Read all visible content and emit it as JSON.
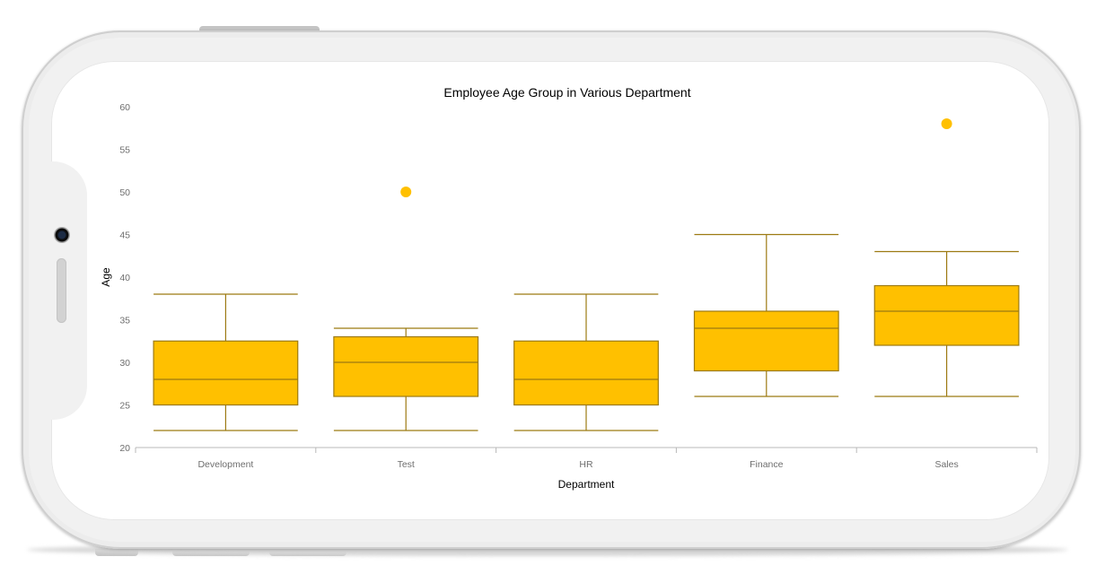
{
  "colors": {
    "box_fill": "#FFC000",
    "box_stroke": "#9C7A12",
    "outlier": "#FFC000",
    "axis": "#b8b8b8"
  },
  "chart_data": {
    "type": "box",
    "title": "Employee Age Group in Various Department",
    "xlabel": "Department",
    "ylabel": "Age",
    "ylim": [
      20,
      60
    ],
    "yticks": [
      20,
      25,
      30,
      35,
      40,
      45,
      50,
      55,
      60
    ],
    "grid": false,
    "categories": [
      "Development",
      "Test",
      "HR",
      "Finance",
      "Sales"
    ],
    "series": [
      {
        "category": "Development",
        "min": 22,
        "q1": 25,
        "median": 28,
        "q3": 32.5,
        "max": 38,
        "outliers": []
      },
      {
        "category": "Test",
        "min": 22,
        "q1": 26,
        "median": 30,
        "q3": 33,
        "max": 34,
        "outliers": [
          50
        ]
      },
      {
        "category": "HR",
        "min": 22,
        "q1": 25,
        "median": 28,
        "q3": 32.5,
        "max": 38,
        "outliers": []
      },
      {
        "category": "Finance",
        "min": 26,
        "q1": 29,
        "median": 34,
        "q3": 36,
        "max": 45,
        "outliers": []
      },
      {
        "category": "Sales",
        "min": 26,
        "q1": 32,
        "median": 36,
        "q3": 39,
        "max": 43,
        "outliers": [
          58
        ]
      }
    ]
  }
}
